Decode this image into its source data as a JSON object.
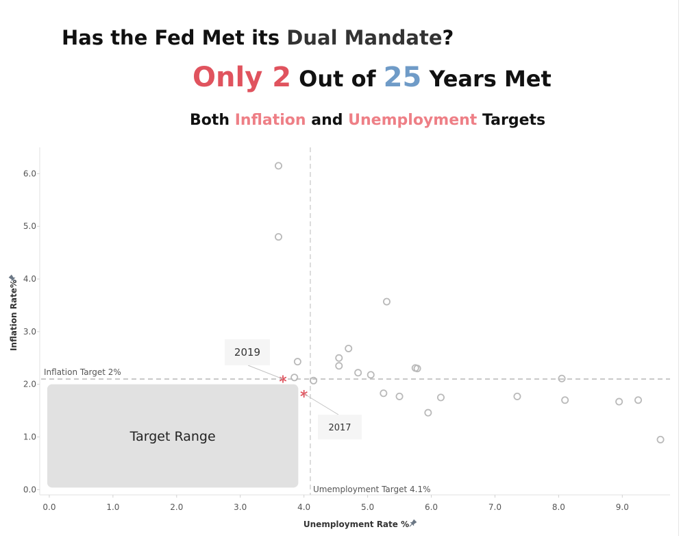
{
  "title": {
    "line1": {
      "part1": "Has the Fed Met its ",
      "part2": "Dual Mandate",
      "part3": "?"
    },
    "line2": {
      "part1": "Only 2",
      "part2": " Out of ",
      "part3": "25",
      "part4": " Years Met"
    },
    "line3": {
      "part1": "Both ",
      "part2": "Inflation",
      "part3": " and ",
      "part4": "Unemployment",
      "part5": " Targets"
    }
  },
  "colors": {
    "accent_red": "#e0535e",
    "accent_blue": "#6f9bc7",
    "accent_pink": "#ee7f86",
    "point_stroke": "#b9b9b9",
    "target_fill": "#e1e1e1",
    "reference_line": "#b5b5b5"
  },
  "chart_data": {
    "type": "scatter",
    "xlabel": "Unemployment Rate %",
    "ylabel": "Inflation Rate%",
    "xlim": [
      -0.15,
      9.75
    ],
    "ylim": [
      -0.1,
      6.5
    ],
    "x_ticks": [
      "0.0",
      "1.0",
      "2.0",
      "3.0",
      "4.0",
      "5.0",
      "6.0",
      "7.0",
      "8.0",
      "9.0"
    ],
    "y_ticks": [
      "0.0",
      "1.0",
      "2.0",
      "3.0",
      "4.0",
      "5.0",
      "6.0"
    ],
    "grid": false,
    "reference_lines": {
      "inflation": {
        "value": 2.1,
        "label": "Inflation Target 2%"
      },
      "unemployment": {
        "value": 4.1,
        "label": "Umemployment Target  4.1%"
      }
    },
    "target_range": {
      "label": "Target Range",
      "x": [
        0,
        3.9
      ],
      "y": [
        0,
        2.0
      ]
    },
    "points": [
      {
        "x": 3.6,
        "y": 6.15
      },
      {
        "x": 3.6,
        "y": 4.8
      },
      {
        "x": 5.3,
        "y": 3.57
      },
      {
        "x": 4.7,
        "y": 2.68
      },
      {
        "x": 4.55,
        "y": 2.5
      },
      {
        "x": 3.9,
        "y": 2.43
      },
      {
        "x": 4.55,
        "y": 2.35
      },
      {
        "x": 5.75,
        "y": 2.31
      },
      {
        "x": 5.78,
        "y": 2.3
      },
      {
        "x": 4.85,
        "y": 2.22
      },
      {
        "x": 5.05,
        "y": 2.18
      },
      {
        "x": 3.85,
        "y": 2.13
      },
      {
        "x": 4.15,
        "y": 2.07
      },
      {
        "x": 8.05,
        "y": 2.11
      },
      {
        "x": 5.25,
        "y": 1.83
      },
      {
        "x": 5.5,
        "y": 1.77
      },
      {
        "x": 6.15,
        "y": 1.75
      },
      {
        "x": 7.35,
        "y": 1.77
      },
      {
        "x": 8.1,
        "y": 1.7
      },
      {
        "x": 8.95,
        "y": 1.67
      },
      {
        "x": 9.25,
        "y": 1.7
      },
      {
        "x": 5.95,
        "y": 1.46
      },
      {
        "x": 9.6,
        "y": 0.95
      }
    ],
    "highlighted": [
      {
        "label": "2019",
        "x": 3.67,
        "y": 2.1
      },
      {
        "label": "2017",
        "x": 4.0,
        "y": 1.82
      }
    ]
  }
}
